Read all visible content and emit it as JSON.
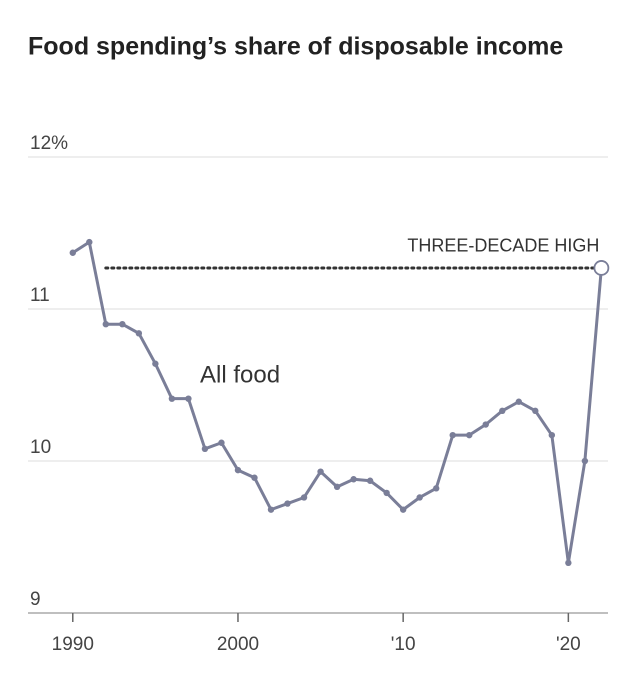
{
  "chart_data": {
    "type": "line",
    "title": "Food spending’s share of disposable income",
    "x": [
      1990,
      1991,
      1992,
      1993,
      1994,
      1995,
      1996,
      1997,
      1998,
      1999,
      2000,
      2001,
      2002,
      2003,
      2004,
      2005,
      2006,
      2007,
      2008,
      2009,
      2010,
      2011,
      2012,
      2013,
      2014,
      2015,
      2016,
      2017,
      2018,
      2019,
      2020,
      2021,
      2022
    ],
    "series": [
      {
        "name": "All food",
        "color": "#7a7e98",
        "values": [
          11.37,
          11.44,
          10.9,
          10.9,
          10.84,
          10.64,
          10.41,
          10.41,
          10.08,
          10.12,
          9.94,
          9.89,
          9.68,
          9.72,
          9.76,
          9.93,
          9.83,
          9.88,
          9.87,
          9.79,
          9.68,
          9.76,
          9.82,
          10.17,
          10.17,
          10.24,
          10.33,
          10.39,
          10.33,
          10.17,
          9.33,
          10.0,
          11.27
        ]
      }
    ],
    "reference_line": {
      "y": 11.27,
      "x_start": 1992,
      "x_end": 2022,
      "label": "THREE-DECADE HIGH"
    },
    "xlim": [
      1988.5,
      2022.4
    ],
    "xticks": [
      1990,
      2000,
      {
        "value": 2010,
        "label": "'10"
      },
      {
        "value": 2020,
        "label": "'20"
      }
    ],
    "ylim": [
      9,
      12
    ],
    "yticks": [
      9,
      10,
      11,
      {
        "value": 12,
        "label": "12%"
      }
    ],
    "grid": true
  }
}
